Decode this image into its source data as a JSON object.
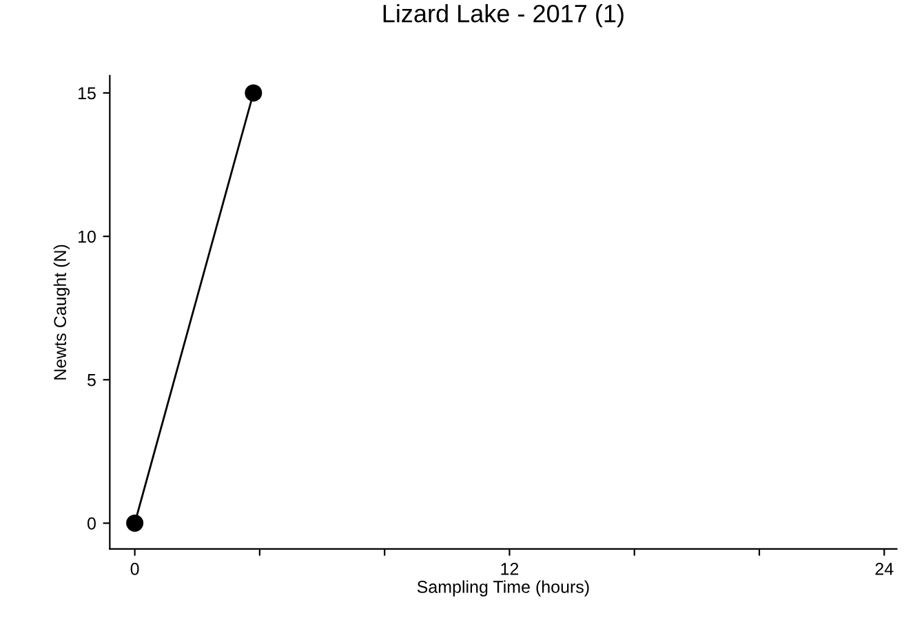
{
  "chart_data": {
    "type": "line",
    "title": "Lizard Lake - 2017 (1)",
    "xlabel": "Sampling Time (hours)",
    "ylabel": "Newts Caught (N)",
    "x": [
      0,
      3.8
    ],
    "series": [
      {
        "color": "#000000",
        "values": [
          0,
          15
        ]
      }
    ],
    "marker": "circle",
    "line_style": "solid",
    "grid": false,
    "xlim": [
      -0.8,
      24.4
    ],
    "xticks": [
      0,
      {
        "value": 4,
        "label": null
      },
      {
        "value": 8,
        "label": null
      },
      12,
      {
        "value": 16,
        "label": null
      },
      {
        "value": 20,
        "label": null
      },
      24
    ],
    "ylim": [
      -0.9,
      15.6
    ],
    "yticks": [
      0,
      5,
      10,
      15
    ]
  }
}
